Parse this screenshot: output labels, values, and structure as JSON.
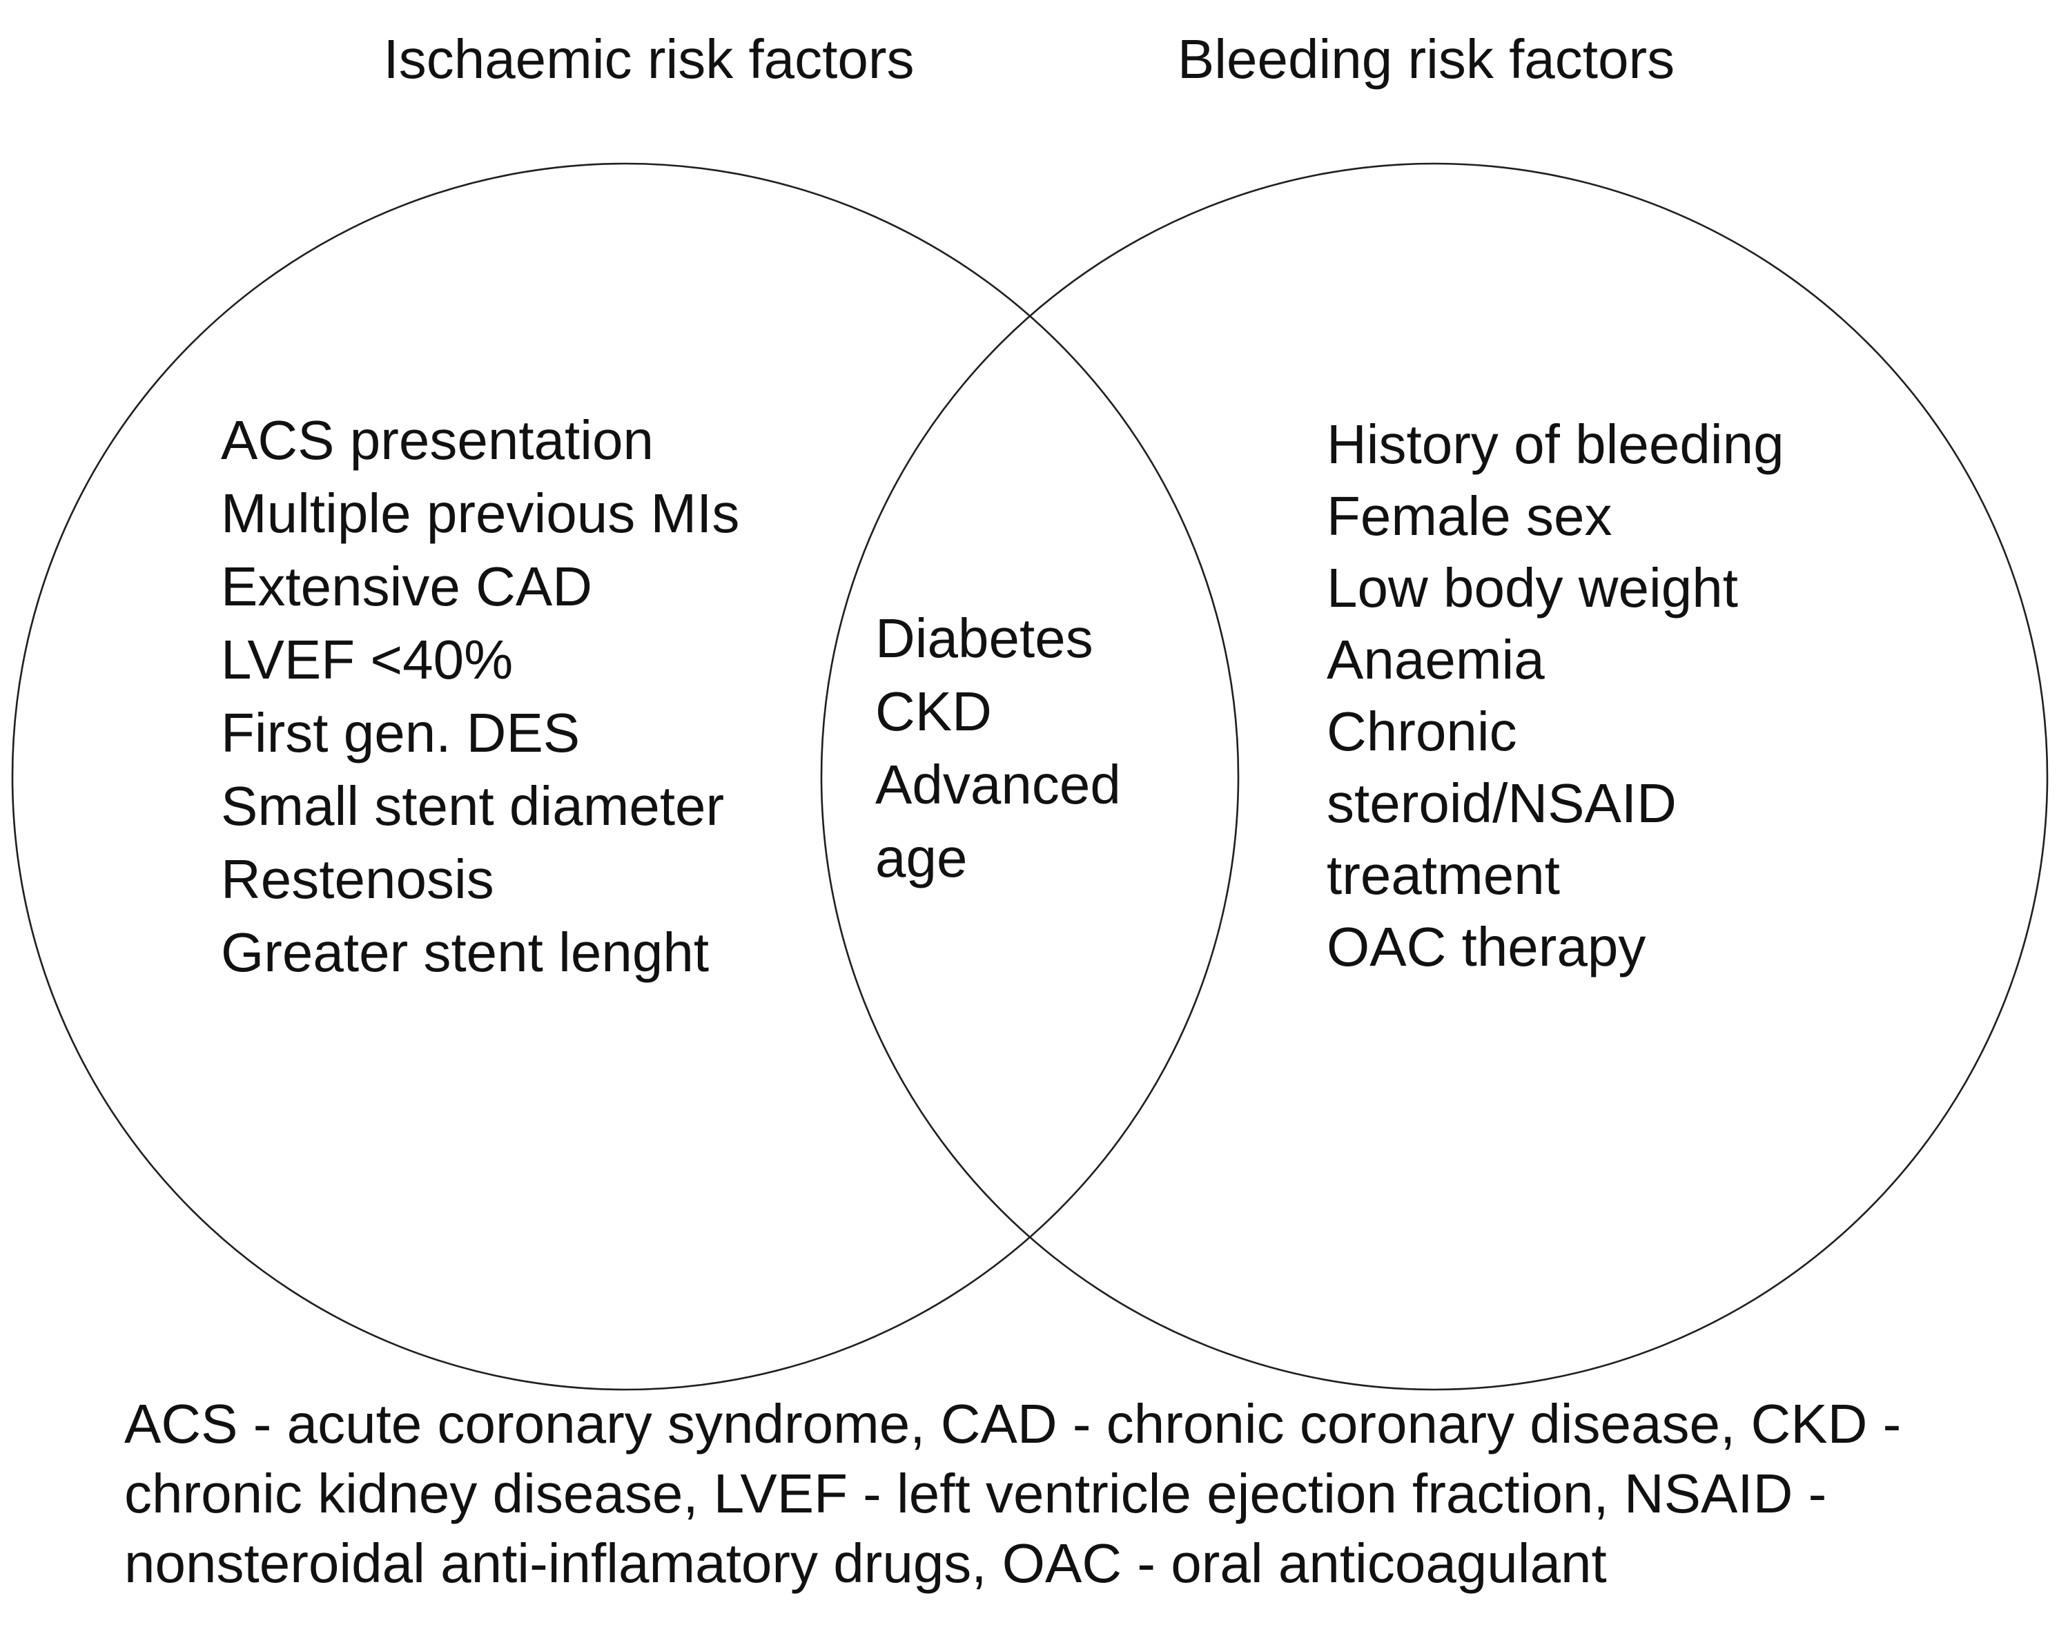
{
  "figure": {
    "left_circle": {
      "title": "Ischaemic risk factors",
      "items": [
        "ACS presentation",
        "Multiple previous MIs",
        "Extensive CAD",
        "LVEF <40%",
        "First gen. DES",
        "Small stent diameter",
        "Restenosis",
        "Greater stent lenght"
      ]
    },
    "overlap": {
      "items": [
        "Diabetes",
        "CKD",
        "Advanced age"
      ]
    },
    "right_circle": {
      "title": "Bleeding risk factors",
      "items": [
        "History of bleeding",
        "Female sex",
        "Low body weight",
        "Anaemia",
        "Chronic steroid/NSAID treatment",
        "OAC therapy"
      ]
    },
    "legend_lines": [
      "ACS - acute coronary syndrome, CAD - chronic coronary disease, CKD -",
      "chronic kidney disease, LVEF - left ventricle ejection fraction, NSAID -",
      "nonsteroidal anti-inflamatory drugs, OAC - oral anticoagulant"
    ],
    "colors": {
      "outline": "#1f1f1f",
      "text": "#111111",
      "background": "#ffffff"
    }
  }
}
